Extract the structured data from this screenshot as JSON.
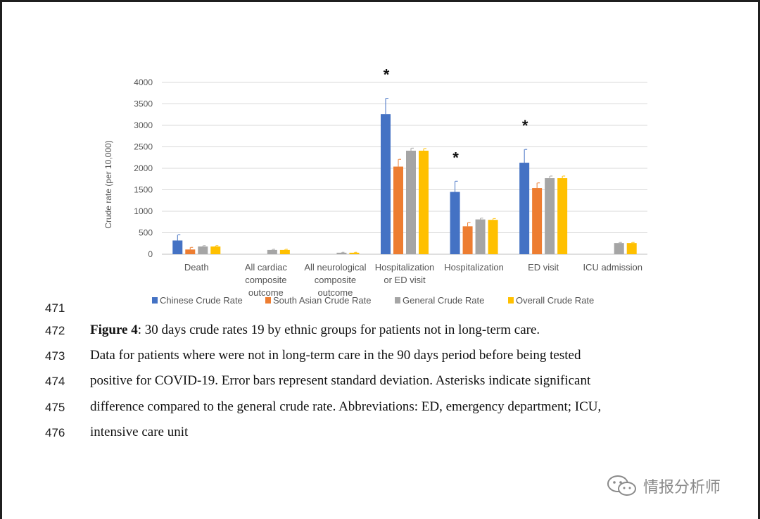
{
  "chart_data": {
    "type": "bar",
    "ylabel": "Crude rate (per 10,000)",
    "ylim": [
      0,
      4000
    ],
    "yticks": [
      0,
      500,
      1000,
      1500,
      2000,
      2500,
      3000,
      3500,
      4000
    ],
    "grid": true,
    "legend_position": "bottom",
    "categories": [
      [
        "Death"
      ],
      [
        "All cardiac",
        "composite",
        "outcome"
      ],
      [
        "All neurological",
        "composite",
        "outcome"
      ],
      [
        "Hospitalization",
        "or ED visit"
      ],
      [
        "Hospitalization"
      ],
      [
        "ED visit"
      ],
      [
        "ICU admission"
      ]
    ],
    "series": [
      {
        "name": "Chinese Crude Rate",
        "color": "#4472C4",
        "values": [
          320,
          null,
          null,
          3260,
          1450,
          2130,
          null
        ],
        "errors": [
          130,
          null,
          null,
          370,
          250,
          310,
          null
        ]
      },
      {
        "name": "South Asian Crude Rate",
        "color": "#ED7D31",
        "values": [
          110,
          null,
          null,
          2040,
          650,
          1540,
          null
        ],
        "errors": [
          50,
          null,
          null,
          170,
          90,
          120,
          null
        ]
      },
      {
        "name": "General Crude Rate",
        "color": "#A5A5A5",
        "values": [
          180,
          100,
          35,
          2410,
          810,
          1770,
          260
        ],
        "errors": [
          20,
          15,
          10,
          60,
          30,
          50,
          15
        ]
      },
      {
        "name": "Overall Crude Rate",
        "color": "#FFC000",
        "values": [
          180,
          100,
          35,
          2410,
          800,
          1770,
          260
        ],
        "errors": [
          20,
          15,
          10,
          50,
          30,
          50,
          15
        ]
      }
    ],
    "significance_markers": [
      {
        "category_index": 3,
        "symbol": "*"
      },
      {
        "category_index": 4,
        "symbol": "*"
      },
      {
        "category_index": 5,
        "symbol": "*"
      }
    ]
  },
  "caption": {
    "blank_line_number": "471",
    "lines": [
      {
        "number": "472",
        "bold": "Figure 4",
        "text": ": 30 days crude rates 19 by ethnic groups for patients not in long-term care."
      },
      {
        "number": "473",
        "bold": "",
        "text": "Data for patients where were not in long-term care in the 90 days period before being tested"
      },
      {
        "number": "474",
        "bold": "",
        "text": "positive for COVID-19. Error bars represent standard deviation. Asterisks indicate significant"
      },
      {
        "number": "475",
        "bold": "",
        "text": "difference compared to the general crude rate. Abbreviations: ED, emergency department; ICU,"
      },
      {
        "number": "476",
        "bold": "",
        "text": "intensive care unit"
      }
    ]
  },
  "watermark": {
    "text": "情报分析师",
    "icon": "wechat-icon"
  }
}
